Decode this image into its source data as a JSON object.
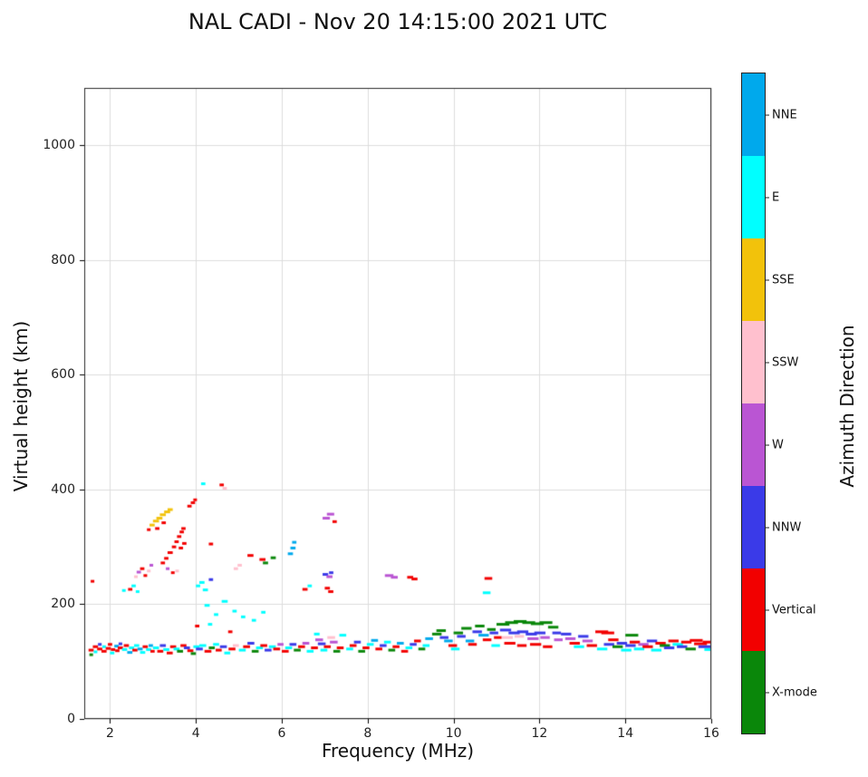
{
  "chart_data": {
    "type": "scatter",
    "title": "NAL CADI - Nov 20 14:15:00 2021 UTC",
    "xlabel": "Frequency (MHz)",
    "ylabel": "Virtual height (km)",
    "xlim": [
      1.4,
      16
    ],
    "ylim": [
      0,
      1100
    ],
    "xticks": [
      2,
      4,
      6,
      8,
      10,
      12,
      14,
      16
    ],
    "yticks": [
      0,
      200,
      400,
      600,
      800,
      1000
    ],
    "grid": true,
    "grid_color": "#dcdcdc",
    "frame_color": "#2a2a2a",
    "legend_position": "right-colorbar",
    "colorbar": {
      "label": "Azimuth Direction",
      "categories": [
        {
          "label": "NNE",
          "color": "#00a9ec"
        },
        {
          "label": "E",
          "color": "#00ffff"
        },
        {
          "label": "SSE",
          "color": "#f2c20b"
        },
        {
          "label": "SSW",
          "color": "#ffc0ce"
        },
        {
          "label": "W",
          "color": "#ba55d3"
        },
        {
          "label": "NNW",
          "color": "#3a3ae8"
        },
        {
          "label": "Vertical",
          "color": "#f20000"
        },
        {
          "label": "X-mode",
          "color": "#0a870a"
        }
      ]
    },
    "runs_format": [
      "x_start_MHz",
      "x_end_MHz",
      "height_km",
      "category_index"
    ],
    "runs": [
      [
        1.5,
        1.62,
        120,
        6
      ],
      [
        1.52,
        1.6,
        112,
        7
      ],
      [
        1.55,
        1.6,
        240,
        6
      ],
      [
        1.6,
        1.72,
        126,
        6
      ],
      [
        1.62,
        1.7,
        117,
        1
      ],
      [
        1.7,
        1.82,
        122,
        6
      ],
      [
        1.72,
        1.8,
        130,
        5
      ],
      [
        1.8,
        1.92,
        118,
        6
      ],
      [
        1.82,
        1.9,
        126,
        1
      ],
      [
        1.9,
        2.02,
        123,
        6
      ],
      [
        1.95,
        2.05,
        130,
        6
      ],
      [
        2.0,
        2.1,
        115,
        1
      ],
      [
        2.02,
        2.12,
        121,
        6
      ],
      [
        2.1,
        2.2,
        127,
        0
      ],
      [
        2.12,
        2.22,
        119,
        6
      ],
      [
        2.18,
        2.3,
        124,
        6
      ],
      [
        2.2,
        2.28,
        131,
        5
      ],
      [
        2.28,
        2.4,
        121,
        1
      ],
      [
        2.32,
        2.44,
        128,
        6
      ],
      [
        2.4,
        2.52,
        116,
        0
      ],
      [
        2.44,
        2.56,
        124,
        1
      ],
      [
        2.52,
        2.64,
        120,
        6
      ],
      [
        2.56,
        2.68,
        128,
        1
      ],
      [
        2.64,
        2.76,
        122,
        0
      ],
      [
        2.7,
        2.82,
        116,
        1
      ],
      [
        2.76,
        2.88,
        126,
        6
      ],
      [
        2.84,
        2.96,
        121,
        1
      ],
      [
        2.9,
        3.0,
        128,
        0
      ],
      [
        2.94,
        3.04,
        118,
        6
      ],
      [
        2.42,
        2.52,
        226,
        6
      ],
      [
        2.5,
        2.6,
        232,
        1
      ],
      [
        2.28,
        2.36,
        224,
        1
      ],
      [
        2.6,
        2.68,
        222,
        1
      ],
      [
        2.56,
        2.64,
        248,
        3
      ],
      [
        2.62,
        2.72,
        256,
        4
      ],
      [
        2.7,
        2.8,
        262,
        6
      ],
      [
        2.78,
        2.86,
        250,
        6
      ],
      [
        2.86,
        2.94,
        258,
        3
      ],
      [
        2.92,
        3.0,
        268,
        4
      ],
      [
        2.92,
        3.04,
        338,
        2
      ],
      [
        3.0,
        3.14,
        345,
        2
      ],
      [
        3.08,
        3.22,
        350,
        2
      ],
      [
        3.16,
        3.3,
        356,
        2
      ],
      [
        3.26,
        3.4,
        361,
        2
      ],
      [
        3.34,
        3.46,
        365,
        2
      ],
      [
        3.05,
        3.15,
        332,
        6
      ],
      [
        3.2,
        3.3,
        342,
        6
      ],
      [
        2.86,
        2.94,
        330,
        6
      ],
      [
        3.18,
        3.28,
        272,
        6
      ],
      [
        3.26,
        3.36,
        280,
        6
      ],
      [
        3.34,
        3.46,
        290,
        6
      ],
      [
        3.44,
        3.54,
        300,
        6
      ],
      [
        3.5,
        3.6,
        309,
        6
      ],
      [
        3.56,
        3.66,
        318,
        6
      ],
      [
        3.62,
        3.72,
        326,
        6
      ],
      [
        3.66,
        3.76,
        332,
        6
      ],
      [
        3.6,
        3.7,
        298,
        6
      ],
      [
        3.68,
        3.78,
        306,
        6
      ],
      [
        3.8,
        3.9,
        371,
        6
      ],
      [
        3.88,
        3.98,
        377,
        6
      ],
      [
        3.94,
        4.02,
        382,
        6
      ],
      [
        3.3,
        3.38,
        262,
        4
      ],
      [
        3.42,
        3.5,
        255,
        6
      ],
      [
        3.52,
        3.6,
        258,
        3
      ],
      [
        3.0,
        3.14,
        124,
        1
      ],
      [
        3.1,
        3.24,
        118,
        6
      ],
      [
        3.16,
        3.3,
        128,
        5
      ],
      [
        3.24,
        3.38,
        121,
        1
      ],
      [
        3.32,
        3.46,
        115,
        6
      ],
      [
        3.4,
        3.54,
        126,
        6
      ],
      [
        3.48,
        3.62,
        122,
        1
      ],
      [
        3.56,
        3.7,
        118,
        7
      ],
      [
        3.64,
        3.78,
        128,
        6
      ],
      [
        3.72,
        3.86,
        124,
        5
      ],
      [
        3.8,
        3.94,
        119,
        6
      ],
      [
        3.88,
        4.0,
        114,
        7
      ],
      [
        3.94,
        4.08,
        126,
        1
      ],
      [
        3.98,
        4.08,
        162,
        6
      ],
      [
        4.28,
        4.38,
        165,
        1
      ],
      [
        4.0,
        4.16,
        122,
        5
      ],
      [
        4.08,
        4.24,
        128,
        1
      ],
      [
        4.2,
        4.36,
        118,
        6
      ],
      [
        4.3,
        4.44,
        124,
        7
      ],
      [
        4.4,
        4.54,
        130,
        1
      ],
      [
        4.46,
        4.6,
        120,
        6
      ],
      [
        4.56,
        4.72,
        126,
        5
      ],
      [
        4.66,
        4.8,
        115,
        1
      ],
      [
        4.76,
        4.92,
        122,
        6
      ],
      [
        4.86,
        5.0,
        128,
        3
      ],
      [
        4.0,
        4.1,
        232,
        1
      ],
      [
        4.08,
        4.2,
        238,
        1
      ],
      [
        4.16,
        4.28,
        225,
        1
      ],
      [
        4.3,
        4.4,
        243,
        5
      ],
      [
        4.3,
        4.4,
        305,
        6
      ],
      [
        4.12,
        4.22,
        410,
        1
      ],
      [
        4.55,
        4.65,
        408,
        6
      ],
      [
        4.62,
        4.72,
        402,
        3
      ],
      [
        4.2,
        4.32,
        198,
        1
      ],
      [
        4.42,
        4.52,
        182,
        1
      ],
      [
        4.6,
        4.74,
        205,
        1
      ],
      [
        4.85,
        4.95,
        188,
        1
      ],
      [
        4.88,
        4.98,
        262,
        3
      ],
      [
        4.97,
        5.07,
        268,
        3
      ],
      [
        4.75,
        4.85,
        152,
        6
      ],
      [
        5.0,
        5.16,
        120,
        1
      ],
      [
        5.1,
        5.26,
        126,
        6
      ],
      [
        5.2,
        5.36,
        132,
        5
      ],
      [
        5.3,
        5.46,
        118,
        7
      ],
      [
        5.4,
        5.56,
        124,
        1
      ],
      [
        5.5,
        5.66,
        128,
        6
      ],
      [
        5.6,
        5.76,
        120,
        5
      ],
      [
        5.7,
        5.86,
        126,
        1
      ],
      [
        5.8,
        5.96,
        122,
        6
      ],
      [
        5.9,
        6.04,
        130,
        4
      ],
      [
        5.2,
        5.34,
        285,
        6
      ],
      [
        5.48,
        5.62,
        278,
        6
      ],
      [
        5.56,
        5.68,
        272,
        7
      ],
      [
        5.74,
        5.86,
        281,
        7
      ],
      [
        5.3,
        5.4,
        172,
        1
      ],
      [
        5.52,
        5.62,
        186,
        1
      ],
      [
        5.05,
        5.15,
        178,
        1
      ],
      [
        6.14,
        6.26,
        288,
        0
      ],
      [
        6.2,
        6.32,
        298,
        0
      ],
      [
        6.24,
        6.34,
        308,
        0
      ],
      [
        6.0,
        6.16,
        118,
        6
      ],
      [
        6.08,
        6.24,
        124,
        1
      ],
      [
        6.18,
        6.34,
        130,
        5
      ],
      [
        6.28,
        6.44,
        120,
        7
      ],
      [
        6.38,
        6.54,
        126,
        6
      ],
      [
        6.48,
        6.64,
        132,
        4
      ],
      [
        6.58,
        6.74,
        118,
        1
      ],
      [
        6.68,
        6.84,
        124,
        6
      ],
      [
        6.78,
        6.96,
        138,
        4
      ],
      [
        6.84,
        7.02,
        131,
        5
      ],
      [
        6.9,
        7.06,
        120,
        1
      ],
      [
        6.98,
        7.14,
        126,
        6
      ],
      [
        7.06,
        7.24,
        142,
        3
      ],
      [
        7.12,
        7.3,
        134,
        4
      ],
      [
        7.2,
        7.36,
        118,
        7
      ],
      [
        7.28,
        7.44,
        124,
        6
      ],
      [
        7.34,
        7.5,
        146,
        1
      ],
      [
        6.75,
        6.88,
        148,
        1
      ],
      [
        6.48,
        6.6,
        226,
        6
      ],
      [
        6.6,
        6.7,
        232,
        1
      ],
      [
        6.95,
        7.12,
        350,
        4
      ],
      [
        7.05,
        7.22,
        357,
        4
      ],
      [
        7.18,
        7.28,
        344,
        6
      ],
      [
        6.95,
        7.08,
        252,
        5
      ],
      [
        7.04,
        7.18,
        248,
        4
      ],
      [
        7.1,
        7.2,
        255,
        5
      ],
      [
        7.0,
        7.12,
        228,
        6
      ],
      [
        7.08,
        7.2,
        222,
        6
      ],
      [
        7.5,
        7.66,
        122,
        1
      ],
      [
        7.58,
        7.74,
        128,
        6
      ],
      [
        7.68,
        7.84,
        134,
        5
      ],
      [
        7.78,
        7.94,
        118,
        7
      ],
      [
        7.88,
        8.04,
        124,
        6
      ],
      [
        7.98,
        8.14,
        130,
        1
      ],
      [
        8.08,
        8.24,
        137,
        0
      ],
      [
        8.18,
        8.34,
        122,
        6
      ],
      [
        8.28,
        8.44,
        128,
        5
      ],
      [
        8.38,
        8.54,
        134,
        1
      ],
      [
        8.48,
        8.64,
        120,
        7
      ],
      [
        8.58,
        8.74,
        126,
        6
      ],
      [
        8.68,
        8.84,
        132,
        0
      ],
      [
        8.78,
        8.94,
        118,
        6
      ],
      [
        8.88,
        9.04,
        124,
        1
      ],
      [
        8.98,
        9.14,
        130,
        5
      ],
      [
        9.08,
        9.24,
        136,
        6
      ],
      [
        9.18,
        9.34,
        122,
        7
      ],
      [
        9.28,
        9.44,
        128,
        1
      ],
      [
        9.34,
        9.52,
        140,
        0
      ],
      [
        8.4,
        8.6,
        250,
        4
      ],
      [
        8.54,
        8.7,
        247,
        4
      ],
      [
        8.92,
        9.06,
        247,
        6
      ],
      [
        9.02,
        9.16,
        244,
        6
      ],
      [
        9.5,
        9.72,
        148,
        7
      ],
      [
        9.6,
        9.82,
        154,
        7
      ],
      [
        9.68,
        9.88,
        142,
        5
      ],
      [
        9.78,
        9.98,
        136,
        0
      ],
      [
        9.88,
        10.08,
        128,
        6
      ],
      [
        9.94,
        10.14,
        122,
        1
      ],
      [
        10.0,
        10.22,
        150,
        7
      ],
      [
        10.08,
        10.28,
        144,
        5
      ],
      [
        10.18,
        10.42,
        158,
        7
      ],
      [
        10.28,
        10.48,
        136,
        0
      ],
      [
        10.34,
        10.54,
        130,
        6
      ],
      [
        10.44,
        10.66,
        152,
        5
      ],
      [
        10.5,
        10.72,
        162,
        7
      ],
      [
        10.58,
        10.82,
        146,
        0
      ],
      [
        10.68,
        10.88,
        138,
        6
      ],
      [
        10.78,
        10.98,
        156,
        7
      ],
      [
        10.84,
        11.04,
        150,
        5
      ],
      [
        10.88,
        11.08,
        128,
        1
      ],
      [
        10.94,
        11.12,
        142,
        6
      ],
      [
        10.72,
        10.9,
        245,
        6
      ],
      [
        10.68,
        10.86,
        220,
        1
      ],
      [
        11.0,
        11.3,
        165,
        7
      ],
      [
        11.2,
        11.5,
        168,
        7
      ],
      [
        11.4,
        11.7,
        170,
        7
      ],
      [
        11.6,
        11.9,
        168,
        7
      ],
      [
        11.8,
        12.1,
        166,
        7
      ],
      [
        12.0,
        12.3,
        168,
        7
      ],
      [
        11.08,
        11.34,
        155,
        5
      ],
      [
        11.28,
        11.54,
        150,
        5
      ],
      [
        11.48,
        11.74,
        152,
        5
      ],
      [
        11.68,
        11.94,
        148,
        5
      ],
      [
        11.88,
        12.14,
        150,
        5
      ],
      [
        11.12,
        11.38,
        142,
        3
      ],
      [
        11.42,
        11.64,
        144,
        3
      ],
      [
        11.72,
        11.98,
        140,
        4
      ],
      [
        12.02,
        12.24,
        142,
        4
      ],
      [
        11.18,
        11.44,
        132,
        6
      ],
      [
        11.48,
        11.7,
        128,
        6
      ],
      [
        11.78,
        12.04,
        130,
        6
      ],
      [
        12.08,
        12.3,
        126,
        6
      ],
      [
        12.2,
        12.44,
        160,
        7
      ],
      [
        12.3,
        12.5,
        150,
        5
      ],
      [
        12.34,
        12.54,
        138,
        4
      ],
      [
        12.5,
        12.74,
        148,
        5
      ],
      [
        12.6,
        12.84,
        140,
        4
      ],
      [
        12.7,
        12.94,
        132,
        6
      ],
      [
        12.8,
        13.04,
        126,
        1
      ],
      [
        12.9,
        13.14,
        144,
        5
      ],
      [
        13.0,
        13.24,
        136,
        4
      ],
      [
        13.1,
        13.34,
        128,
        6
      ],
      [
        13.3,
        13.6,
        152,
        6
      ],
      [
        13.44,
        13.74,
        150,
        6
      ],
      [
        13.34,
        13.58,
        122,
        1
      ],
      [
        13.5,
        13.74,
        130,
        5
      ],
      [
        13.6,
        13.84,
        138,
        6
      ],
      [
        13.7,
        13.94,
        126,
        7
      ],
      [
        13.8,
        14.04,
        132,
        5
      ],
      [
        13.9,
        14.14,
        120,
        1
      ],
      [
        14.0,
        14.3,
        146,
        7
      ],
      [
        14.0,
        14.24,
        128,
        5
      ],
      [
        14.1,
        14.34,
        134,
        6
      ],
      [
        14.2,
        14.44,
        122,
        1
      ],
      [
        14.3,
        14.54,
        130,
        4
      ],
      [
        14.4,
        14.64,
        126,
        6
      ],
      [
        14.5,
        14.74,
        136,
        5
      ],
      [
        14.6,
        14.84,
        120,
        1
      ],
      [
        14.7,
        14.94,
        132,
        6
      ],
      [
        14.8,
        15.04,
        128,
        7
      ],
      [
        14.9,
        15.14,
        124,
        5
      ],
      [
        15.0,
        15.24,
        136,
        6
      ],
      [
        15.1,
        15.34,
        130,
        1
      ],
      [
        15.2,
        15.44,
        126,
        5
      ],
      [
        15.3,
        15.54,
        134,
        6
      ],
      [
        15.4,
        15.64,
        122,
        7
      ],
      [
        15.5,
        15.8,
        137,
        6
      ],
      [
        15.6,
        15.9,
        131,
        6
      ],
      [
        15.7,
        16.0,
        126,
        5
      ],
      [
        15.8,
        16.0,
        134,
        6
      ],
      [
        15.84,
        16.0,
        121,
        1
      ]
    ]
  }
}
